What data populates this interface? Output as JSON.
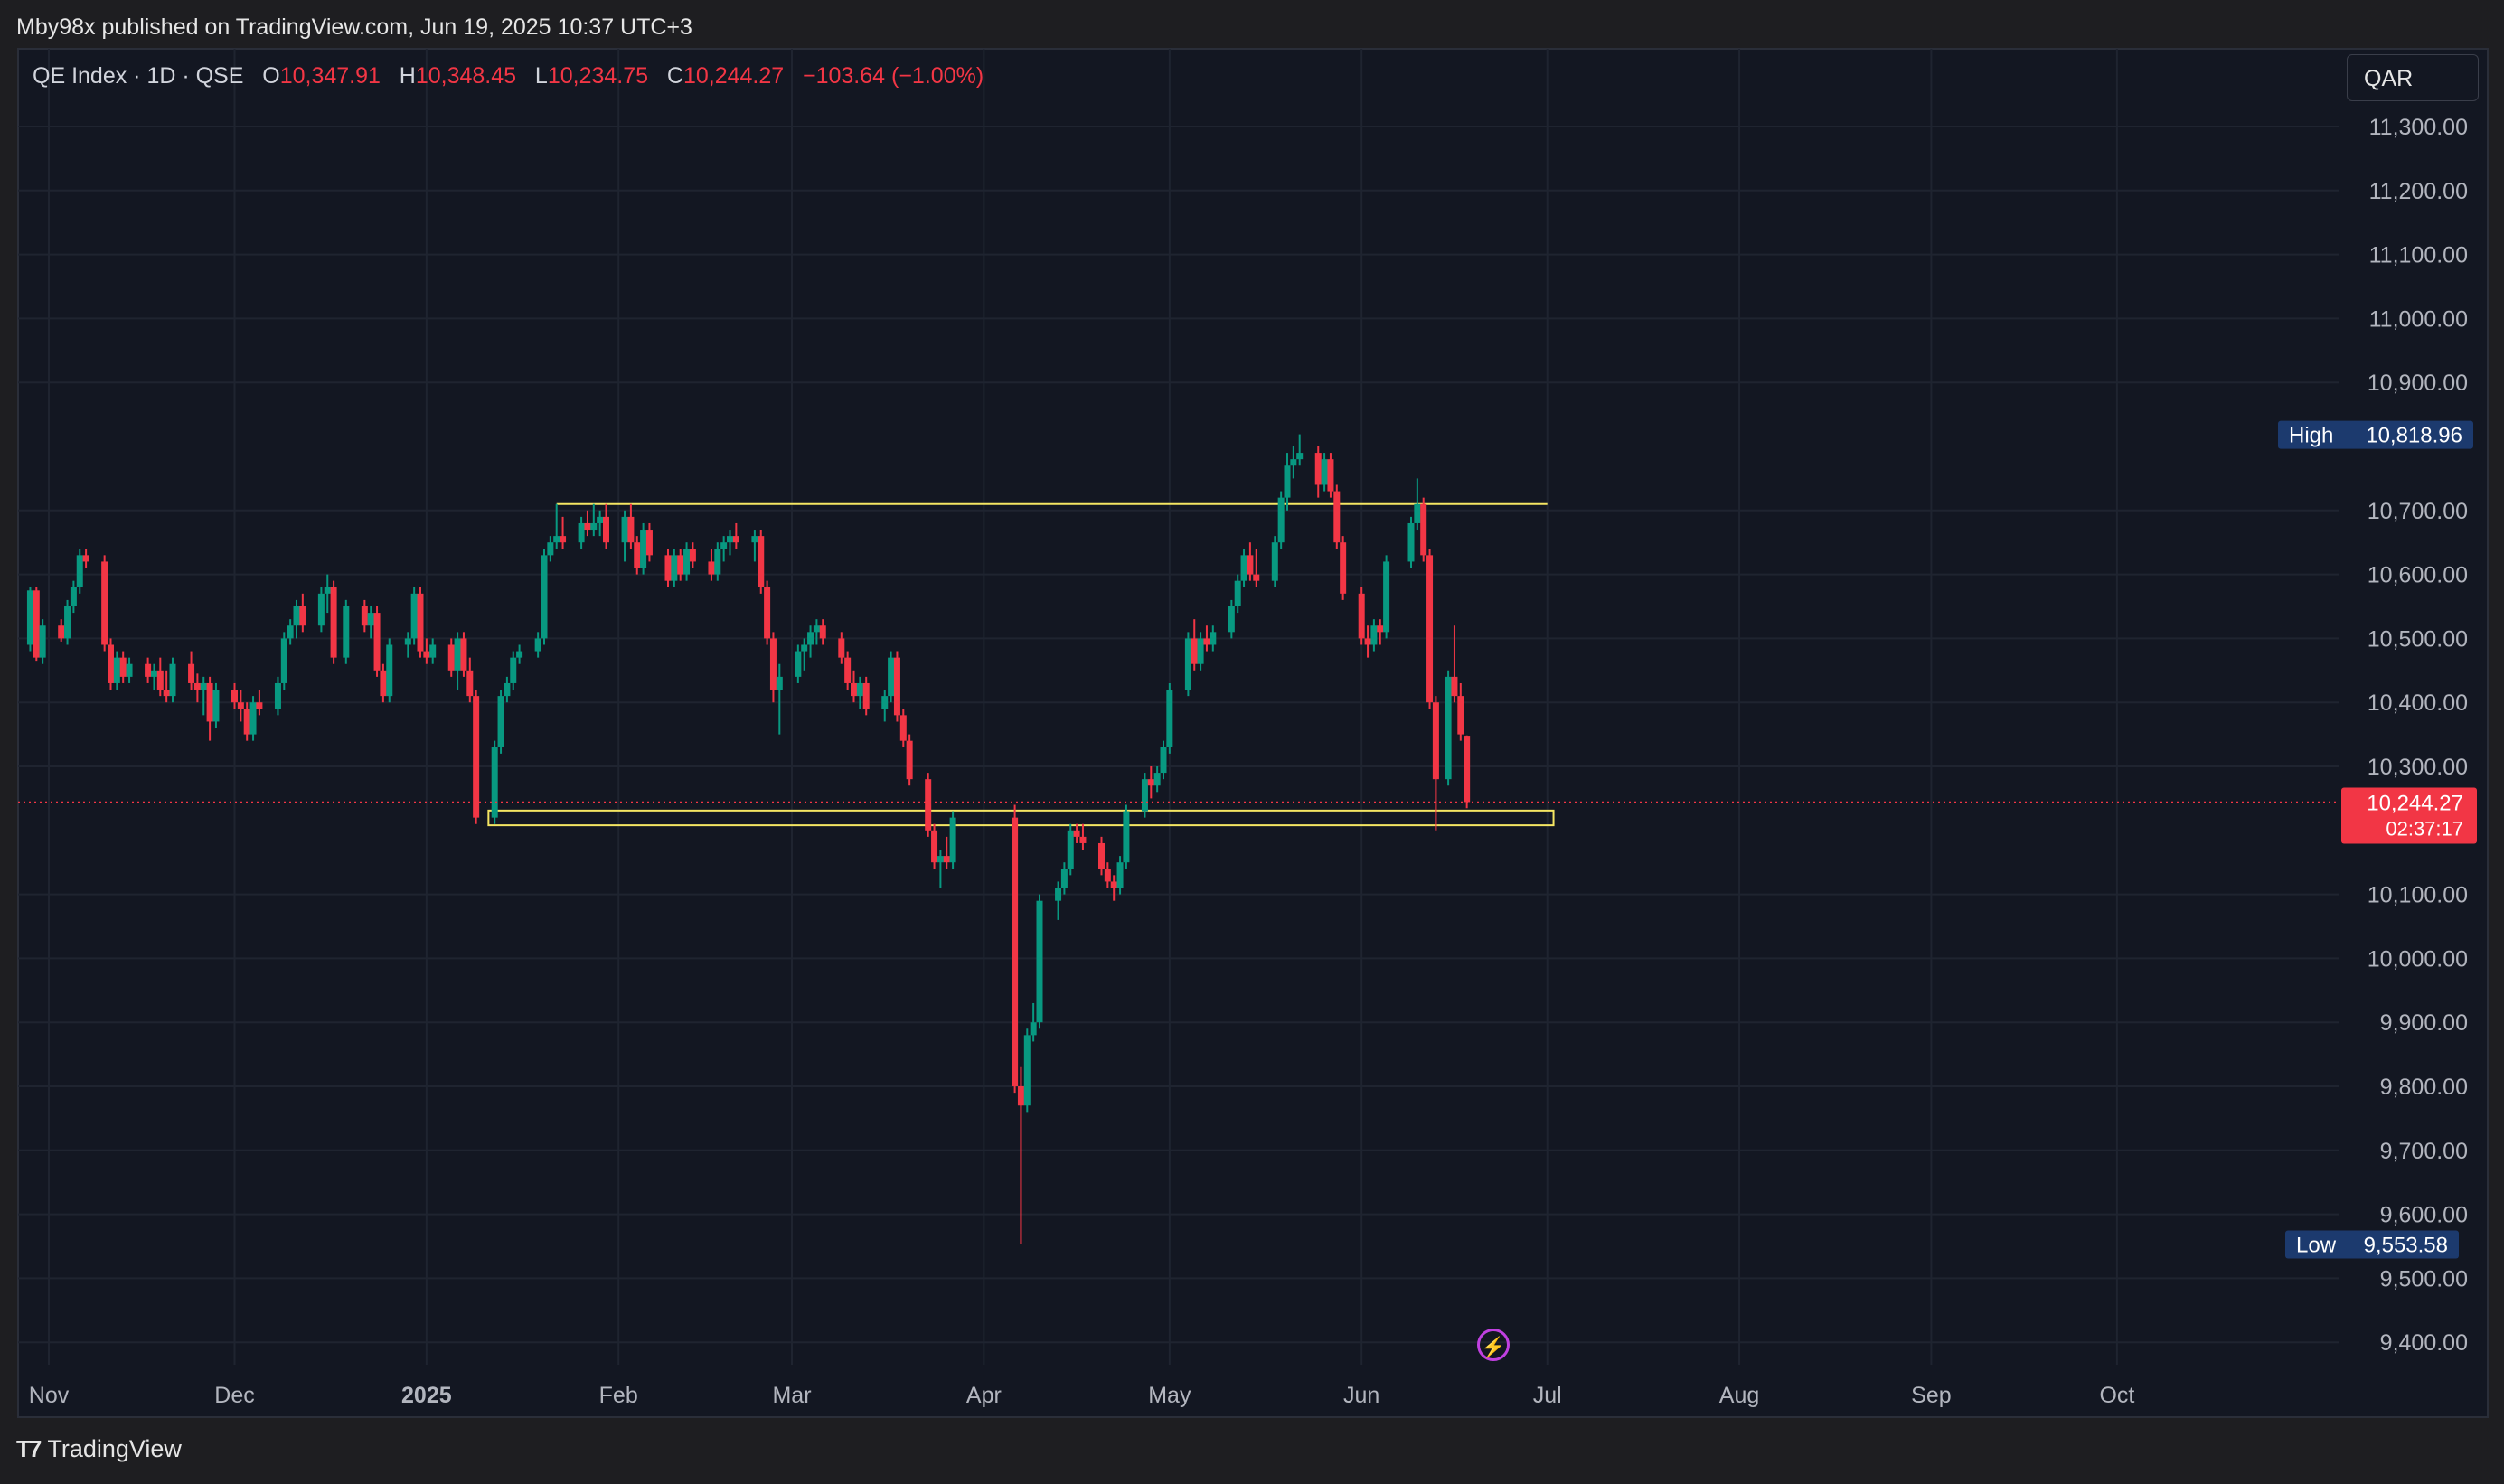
{
  "header": {
    "published_text": "Mby98x published on TradingView.com, Jun 19, 2025 10:37 UTC+3"
  },
  "legend": {
    "symbol_text": "QE Index · 1D · QSE",
    "o_label": "O",
    "o_value": "10,347.91",
    "h_label": "H",
    "h_value": "10,348.45",
    "l_label": "L",
    "l_value": "10,234.75",
    "c_label": "C",
    "c_value": "10,244.27",
    "change_text": "−103.64 (−1.00%)"
  },
  "currency_button": "QAR",
  "footer": {
    "logo_text": "TradingView"
  },
  "colors": {
    "up": "#089981",
    "down": "#f23645",
    "zone": "#f5e663",
    "background": "#131722"
  },
  "icons": [
    "tradingview-logo-icon",
    "flash-icon"
  ],
  "chart_data": {
    "type": "candlestick",
    "ylim": [
      9370,
      11370
    ],
    "y_ticks": [
      {
        "value": 11300,
        "label": "11,300.00"
      },
      {
        "value": 11200,
        "label": "11,200.00"
      },
      {
        "value": 11100,
        "label": "11,100.00"
      },
      {
        "value": 11000,
        "label": "11,000.00"
      },
      {
        "value": 10900,
        "label": "10,900.00"
      },
      {
        "value": 10700,
        "label": "10,700.00"
      },
      {
        "value": 10600,
        "label": "10,600.00"
      },
      {
        "value": 10500,
        "label": "10,500.00"
      },
      {
        "value": 10400,
        "label": "10,400.00"
      },
      {
        "value": 10300,
        "label": "10,300.00"
      },
      {
        "value": 10100,
        "label": "10,100.00"
      },
      {
        "value": 10000,
        "label": "10,000.00"
      },
      {
        "value": 9900,
        "label": "9,900.00"
      },
      {
        "value": 9800,
        "label": "9,800.00"
      },
      {
        "value": 9700,
        "label": "9,700.00"
      },
      {
        "value": 9600,
        "label": "9,600.00"
      },
      {
        "value": 9500,
        "label": "9,500.00"
      },
      {
        "value": 9400,
        "label": "9,400.00"
      }
    ],
    "x_ticks": [
      {
        "label": "Nov",
        "date": "2024-11-01",
        "bold": false
      },
      {
        "label": "Dec",
        "date": "2024-12-01",
        "bold": false
      },
      {
        "label": "2025",
        "date": "2025-01-01",
        "bold": true
      },
      {
        "label": "Feb",
        "date": "2025-02-01",
        "bold": false
      },
      {
        "label": "Mar",
        "date": "2025-03-01",
        "bold": false
      },
      {
        "label": "Apr",
        "date": "2025-04-01",
        "bold": false
      },
      {
        "label": "May",
        "date": "2025-05-01",
        "bold": false
      },
      {
        "label": "Jun",
        "date": "2025-06-01",
        "bold": false
      },
      {
        "label": "Jul",
        "date": "2025-07-01",
        "bold": false
      },
      {
        "label": "Aug",
        "date": "2025-08-01",
        "bold": false
      },
      {
        "label": "Sep",
        "date": "2025-09-01",
        "bold": false
      },
      {
        "label": "Oct",
        "date": "2025-10-01",
        "bold": false
      }
    ],
    "high_marker": {
      "label": "High",
      "value": 10818.96,
      "value_text": "10,818.96"
    },
    "low_marker": {
      "label": "Low",
      "value": 9553.58,
      "value_text": "9,553.58"
    },
    "last_price": {
      "value": 10244.27,
      "value_text": "10,244.27",
      "countdown": "02:37:17"
    },
    "zones": [
      {
        "name": "resistance",
        "date_from": "2025-01-22",
        "date_to": "2025-07-01",
        "value": 10710
      },
      {
        "name": "support",
        "date_from": "2025-01-11",
        "date_to": "2025-07-02",
        "value_top": 10231,
        "value_bottom": 10208
      }
    ],
    "candles": [
      [
        "2024-10-29",
        10490,
        10580,
        10480,
        10575
      ],
      [
        "2024-10-30",
        10575,
        10580,
        10465,
        10470
      ],
      [
        "2024-10-31",
        10470,
        10530,
        10460,
        10520
      ],
      [
        "2024-11-03",
        10520,
        10530,
        10495,
        10500
      ],
      [
        "2024-11-04",
        10500,
        10560,
        10490,
        10550
      ],
      [
        "2024-11-05",
        10550,
        10590,
        10540,
        10580
      ],
      [
        "2024-11-06",
        10580,
        10640,
        10570,
        10630
      ],
      [
        "2024-11-07",
        10630,
        10640,
        10610,
        10620
      ],
      [
        "2024-11-10",
        10620,
        10630,
        10480,
        10490
      ],
      [
        "2024-11-11",
        10490,
        10500,
        10420,
        10430
      ],
      [
        "2024-11-12",
        10430,
        10480,
        10420,
        10470
      ],
      [
        "2024-11-13",
        10470,
        10480,
        10430,
        10440
      ],
      [
        "2024-11-14",
        10440,
        10470,
        10430,
        10460
      ],
      [
        "2024-11-17",
        10460,
        10470,
        10430,
        10440
      ],
      [
        "2024-11-18",
        10440,
        10460,
        10420,
        10450
      ],
      [
        "2024-11-19",
        10450,
        10470,
        10410,
        10420
      ],
      [
        "2024-11-20",
        10420,
        10450,
        10400,
        10410
      ],
      [
        "2024-11-21",
        10410,
        10470,
        10400,
        10460
      ],
      [
        "2024-11-24",
        10460,
        10480,
        10420,
        10430
      ],
      [
        "2024-11-25",
        10430,
        10445,
        10400,
        10420
      ],
      [
        "2024-11-26",
        10420,
        10440,
        10380,
        10430
      ],
      [
        "2024-11-27",
        10430,
        10440,
        10340,
        10370
      ],
      [
        "2024-11-28",
        10370,
        10430,
        10360,
        10420
      ],
      [
        "2024-12-01",
        10420,
        10430,
        10390,
        10400
      ],
      [
        "2024-12-02",
        10400,
        10420,
        10370,
        10390
      ],
      [
        "2024-12-03",
        10390,
        10400,
        10340,
        10350
      ],
      [
        "2024-12-04",
        10350,
        10410,
        10340,
        10400
      ],
      [
        "2024-12-05",
        10400,
        10420,
        10380,
        10390
      ],
      [
        "2024-12-08",
        10390,
        10440,
        10380,
        10430
      ],
      [
        "2024-12-09",
        10430,
        10510,
        10420,
        10500
      ],
      [
        "2024-12-10",
        10500,
        10530,
        10490,
        10520
      ],
      [
        "2024-12-11",
        10520,
        10560,
        10500,
        10550
      ],
      [
        "2024-12-12",
        10550,
        10570,
        10510,
        10520
      ],
      [
        "2024-12-15",
        10520,
        10580,
        10510,
        10570
      ],
      [
        "2024-12-16",
        10570,
        10600,
        10540,
        10580
      ],
      [
        "2024-12-17",
        10580,
        10590,
        10460,
        10470
      ],
      [
        "2024-12-19",
        10470,
        10560,
        10460,
        10550
      ],
      [
        "2024-12-22",
        10550,
        10560,
        10510,
        10520
      ],
      [
        "2024-12-23",
        10520,
        10550,
        10500,
        10540
      ],
      [
        "2024-12-24",
        10540,
        10550,
        10440,
        10450
      ],
      [
        "2024-12-25",
        10450,
        10460,
        10400,
        10410
      ],
      [
        "2024-12-26",
        10410,
        10500,
        10400,
        10490
      ],
      [
        "2024-12-29",
        10490,
        10510,
        10470,
        10500
      ],
      [
        "2024-12-30",
        10500,
        10580,
        10490,
        10570
      ],
      [
        "2024-12-31",
        10570,
        10580,
        10470,
        10480
      ],
      [
        "2025-01-01",
        10480,
        10500,
        10460,
        10470
      ],
      [
        "2025-01-02",
        10470,
        10500,
        10460,
        10490
      ],
      [
        "2025-01-05",
        10490,
        10500,
        10440,
        10450
      ],
      [
        "2025-01-06",
        10450,
        10510,
        10420,
        10500
      ],
      [
        "2025-01-07",
        10500,
        10510,
        10440,
        10450
      ],
      [
        "2025-01-08",
        10450,
        10470,
        10400,
        10410
      ],
      [
        "2025-01-09",
        10410,
        10420,
        10210,
        10220
      ],
      [
        "2025-01-12",
        10220,
        10340,
        10210,
        10330
      ],
      [
        "2025-01-13",
        10330,
        10420,
        10320,
        10410
      ],
      [
        "2025-01-14",
        10410,
        10440,
        10400,
        10430
      ],
      [
        "2025-01-15",
        10430,
        10480,
        10420,
        10470
      ],
      [
        "2025-01-16",
        10470,
        10490,
        10460,
        10480
      ],
      [
        "2025-01-19",
        10480,
        10510,
        10470,
        10500
      ],
      [
        "2025-01-20",
        10500,
        10640,
        10490,
        10630
      ],
      [
        "2025-01-21",
        10630,
        10660,
        10620,
        10650
      ],
      [
        "2025-01-22",
        10650,
        10710,
        10640,
        10660
      ],
      [
        "2025-01-23",
        10660,
        10690,
        10640,
        10650
      ],
      [
        "2025-01-26",
        10650,
        10690,
        10640,
        10680
      ],
      [
        "2025-01-27",
        10680,
        10700,
        10660,
        10670
      ],
      [
        "2025-01-28",
        10670,
        10710,
        10660,
        10680
      ],
      [
        "2025-01-29",
        10680,
        10700,
        10660,
        10690
      ],
      [
        "2025-01-30",
        10690,
        10710,
        10640,
        10650
      ],
      [
        "2025-02-02",
        10650,
        10700,
        10620,
        10690
      ],
      [
        "2025-02-03",
        10690,
        10710,
        10640,
        10650
      ],
      [
        "2025-02-04",
        10650,
        10660,
        10600,
        10610
      ],
      [
        "2025-02-05",
        10610,
        10680,
        10600,
        10670
      ],
      [
        "2025-02-06",
        10670,
        10680,
        10620,
        10630
      ],
      [
        "2025-02-09",
        10630,
        10640,
        10580,
        10590
      ],
      [
        "2025-02-10",
        10590,
        10640,
        10580,
        10630
      ],
      [
        "2025-02-11",
        10630,
        10640,
        10590,
        10600
      ],
      [
        "2025-02-12",
        10600,
        10650,
        10590,
        10640
      ],
      [
        "2025-02-13",
        10640,
        10650,
        10610,
        10620
      ],
      [
        "2025-02-16",
        10620,
        10640,
        10590,
        10600
      ],
      [
        "2025-02-17",
        10600,
        10650,
        10590,
        10640
      ],
      [
        "2025-02-18",
        10640,
        10660,
        10620,
        10650
      ],
      [
        "2025-02-19",
        10650,
        10670,
        10630,
        10660
      ],
      [
        "2025-02-20",
        10660,
        10680,
        10640,
        10650
      ],
      [
        "2025-02-23",
        10650,
        10670,
        10620,
        10660
      ],
      [
        "2025-02-24",
        10660,
        10670,
        10570,
        10580
      ],
      [
        "2025-02-25",
        10580,
        10590,
        10490,
        10500
      ],
      [
        "2025-02-26",
        10500,
        10510,
        10400,
        10420
      ],
      [
        "2025-02-27",
        10420,
        10460,
        10350,
        10440
      ],
      [
        "2025-03-02",
        10440,
        10490,
        10430,
        10480
      ],
      [
        "2025-03-03",
        10480,
        10500,
        10450,
        10490
      ],
      [
        "2025-03-04",
        10490,
        10520,
        10470,
        10510
      ],
      [
        "2025-03-05",
        10510,
        10530,
        10490,
        10520
      ],
      [
        "2025-03-06",
        10520,
        10530,
        10490,
        10500
      ],
      [
        "2025-03-09",
        10500,
        10510,
        10460,
        10470
      ],
      [
        "2025-03-10",
        10470,
        10480,
        10420,
        10430
      ],
      [
        "2025-03-11",
        10430,
        10450,
        10400,
        10410
      ],
      [
        "2025-03-12",
        10410,
        10440,
        10390,
        10430
      ],
      [
        "2025-03-13",
        10430,
        10440,
        10380,
        10390
      ],
      [
        "2025-03-16",
        10390,
        10420,
        10370,
        10410
      ],
      [
        "2025-03-17",
        10410,
        10480,
        10400,
        10470
      ],
      [
        "2025-03-18",
        10470,
        10480,
        10370,
        10380
      ],
      [
        "2025-03-19",
        10380,
        10390,
        10330,
        10340
      ],
      [
        "2025-03-20",
        10340,
        10350,
        10270,
        10280
      ],
      [
        "2025-03-23",
        10280,
        10290,
        10190,
        10200
      ],
      [
        "2025-03-24",
        10200,
        10210,
        10140,
        10150
      ],
      [
        "2025-03-25",
        10150,
        10170,
        10110,
        10160
      ],
      [
        "2025-03-26",
        10160,
        10190,
        10140,
        10150
      ],
      [
        "2025-03-27",
        10150,
        10230,
        10140,
        10220
      ],
      [
        "2025-04-06",
        10220,
        10240,
        9790,
        9800
      ],
      [
        "2025-04-07",
        9800,
        9830,
        9553.58,
        9770
      ],
      [
        "2025-04-08",
        9770,
        9890,
        9760,
        9880
      ],
      [
        "2025-04-09",
        9880,
        9930,
        9870,
        9900
      ],
      [
        "2025-04-10",
        9900,
        10100,
        9890,
        10090
      ],
      [
        "2025-04-13",
        10090,
        10120,
        10060,
        10110
      ],
      [
        "2025-04-14",
        10110,
        10150,
        10100,
        10140
      ],
      [
        "2025-04-15",
        10140,
        10210,
        10130,
        10200
      ],
      [
        "2025-04-16",
        10200,
        10210,
        10180,
        10190
      ],
      [
        "2025-04-17",
        10190,
        10210,
        10170,
        10180
      ],
      [
        "2025-04-20",
        10180,
        10190,
        10130,
        10140
      ],
      [
        "2025-04-21",
        10140,
        10150,
        10110,
        10120
      ],
      [
        "2025-04-22",
        10120,
        10130,
        10090,
        10110
      ],
      [
        "2025-04-23",
        10110,
        10160,
        10100,
        10150
      ],
      [
        "2025-04-24",
        10150,
        10240,
        10140,
        10230
      ],
      [
        "2025-04-27",
        10230,
        10290,
        10220,
        10280
      ],
      [
        "2025-04-28",
        10280,
        10300,
        10250,
        10270
      ],
      [
        "2025-04-29",
        10270,
        10300,
        10260,
        10290
      ],
      [
        "2025-04-30",
        10290,
        10340,
        10280,
        10330
      ],
      [
        "2025-05-01",
        10330,
        10430,
        10320,
        10420
      ],
      [
        "2025-05-04",
        10420,
        10510,
        10410,
        10500
      ],
      [
        "2025-05-05",
        10500,
        10530,
        10450,
        10460
      ],
      [
        "2025-05-06",
        10460,
        10510,
        10450,
        10500
      ],
      [
        "2025-05-07",
        10500,
        10520,
        10480,
        10490
      ],
      [
        "2025-05-08",
        10490,
        10520,
        10480,
        10510
      ],
      [
        "2025-05-11",
        10510,
        10560,
        10500,
        10550
      ],
      [
        "2025-05-12",
        10550,
        10600,
        10540,
        10590
      ],
      [
        "2025-05-13",
        10590,
        10640,
        10580,
        10630
      ],
      [
        "2025-05-14",
        10630,
        10650,
        10590,
        10600
      ],
      [
        "2025-05-15",
        10600,
        10640,
        10580,
        10590
      ],
      [
        "2025-05-18",
        10590,
        10660,
        10580,
        10650
      ],
      [
        "2025-05-19",
        10650,
        10730,
        10640,
        10720
      ],
      [
        "2025-05-20",
        10720,
        10790,
        10700,
        10770
      ],
      [
        "2025-05-21",
        10770,
        10800,
        10750,
        10780
      ],
      [
        "2025-05-22",
        10780,
        10818.96,
        10770,
        10790
      ],
      [
        "2025-05-25",
        10790,
        10800,
        10720,
        10740
      ],
      [
        "2025-05-26",
        10740,
        10790,
        10730,
        10780
      ],
      [
        "2025-05-27",
        10780,
        10790,
        10720,
        10730
      ],
      [
        "2025-05-28",
        10730,
        10740,
        10640,
        10650
      ],
      [
        "2025-05-29",
        10650,
        10660,
        10560,
        10570
      ],
      [
        "2025-06-01",
        10570,
        10580,
        10490,
        10500
      ],
      [
        "2025-06-02",
        10500,
        10520,
        10470,
        10490
      ],
      [
        "2025-06-03",
        10490,
        10530,
        10480,
        10520
      ],
      [
        "2025-06-04",
        10520,
        10530,
        10490,
        10510
      ],
      [
        "2025-06-05",
        10510,
        10630,
        10500,
        10620
      ],
      [
        "2025-06-09",
        10620,
        10690,
        10610,
        10680
      ],
      [
        "2025-06-10",
        10680,
        10750,
        10670,
        10710
      ],
      [
        "2025-06-11",
        10710,
        10720,
        10620,
        10630
      ],
      [
        "2025-06-12",
        10630,
        10640,
        10390,
        10400
      ],
      [
        "2025-06-13",
        10400,
        10410,
        10200,
        10280
      ],
      [
        "2025-06-15",
        10280,
        10450,
        10270,
        10440
      ],
      [
        "2025-06-16",
        10440,
        10520,
        10400,
        10410
      ],
      [
        "2025-06-17",
        10410,
        10430,
        10340,
        10350
      ],
      [
        "2025-06-18",
        10347.91,
        10348.45,
        10234.75,
        10244.27
      ]
    ]
  }
}
